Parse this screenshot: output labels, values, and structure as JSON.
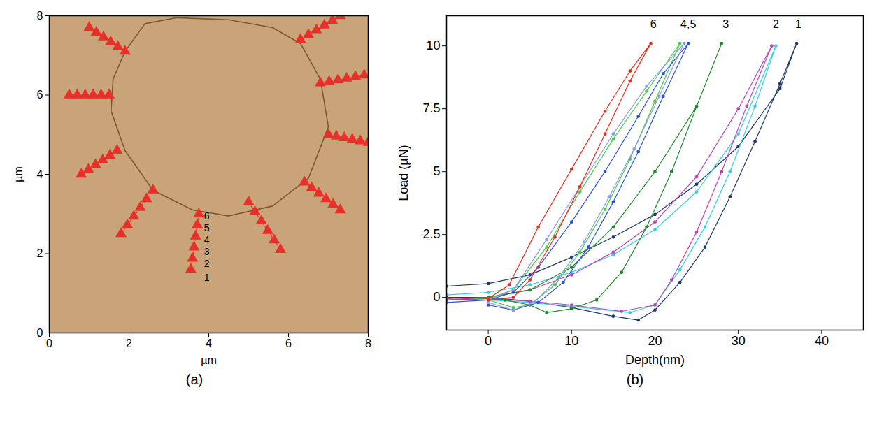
{
  "chart_data": [
    {
      "type": "scatter",
      "title": "(a)",
      "xlabel": "µm",
      "ylabel": "µm",
      "xlim": [
        0,
        8
      ],
      "ylim": [
        0,
        8
      ],
      "xticks": [
        0,
        2,
        4,
        6,
        8
      ],
      "yticks": [
        0,
        2,
        4,
        6,
        8
      ],
      "grid": false,
      "series": [
        {
          "type": "line",
          "color": "#7a5a30",
          "line_style": "solid",
          "x": [
            1.9,
            2.4,
            3.2,
            4.5,
            5.6,
            6.3,
            6.8,
            7.0,
            6.5,
            5.6,
            4.5,
            3.6,
            2.6,
            1.9,
            1.55,
            1.6,
            1.9
          ],
          "values": [
            7.1,
            7.8,
            7.95,
            7.9,
            7.7,
            7.3,
            6.4,
            5.2,
            3.9,
            3.2,
            2.95,
            3.1,
            3.6,
            4.6,
            5.6,
            6.4,
            7.1
          ]
        },
        {
          "color": "#e8302a",
          "marker": "triangle",
          "line_style": "dashed",
          "x": [
            1.0,
            1.18,
            1.36,
            1.54,
            1.72,
            1.9
          ],
          "values": [
            7.7,
            7.58,
            7.46,
            7.34,
            7.22,
            7.1
          ]
        },
        {
          "color": "#e8302a",
          "marker": "triangle",
          "line_style": "dashed",
          "x": [
            0.5,
            0.7,
            0.9,
            1.1,
            1.3,
            1.5
          ],
          "values": [
            6.0,
            6.0,
            6.0,
            6.0,
            6.0,
            6.0
          ]
        },
        {
          "color": "#e8302a",
          "marker": "triangle",
          "line_style": "dashed",
          "x": [
            0.8,
            0.98,
            1.16,
            1.34,
            1.52,
            1.7
          ],
          "values": [
            4.0,
            4.12,
            4.24,
            4.36,
            4.48,
            4.6
          ]
        },
        {
          "color": "#e8302a",
          "marker": "triangle",
          "line_style": "dashed",
          "x": [
            1.8,
            1.96,
            2.12,
            2.28,
            2.44,
            2.6
          ],
          "values": [
            2.5,
            2.72,
            2.94,
            3.16,
            3.38,
            3.6
          ]
        },
        {
          "color": "#e8302a",
          "marker": "triangle",
          "line_style": "dashed",
          "x": [
            3.55,
            3.59,
            3.63,
            3.67,
            3.71,
            3.75
          ],
          "values": [
            1.6,
            1.88,
            2.16,
            2.44,
            2.72,
            3.0
          ]
        },
        {
          "color": "#e8302a",
          "marker": "triangle",
          "line_style": "dashed",
          "x": [
            5.0,
            5.16,
            5.32,
            5.48,
            5.64,
            5.8
          ],
          "values": [
            3.3,
            3.06,
            2.82,
            2.58,
            2.34,
            2.1
          ]
        },
        {
          "color": "#e8302a",
          "marker": "triangle",
          "line_style": "dashed",
          "x": [
            6.4,
            6.58,
            6.76,
            6.94,
            7.12,
            7.3
          ],
          "values": [
            3.8,
            3.66,
            3.52,
            3.38,
            3.24,
            3.1
          ]
        },
        {
          "color": "#e8302a",
          "marker": "triangle",
          "line_style": "dashed",
          "x": [
            7.0,
            7.2,
            7.4,
            7.6,
            7.8,
            8.0
          ],
          "values": [
            5.0,
            4.96,
            4.92,
            4.88,
            4.84,
            4.8
          ]
        },
        {
          "color": "#e8302a",
          "marker": "triangle",
          "line_style": "dashed",
          "x": [
            6.8,
            7.02,
            7.24,
            7.46,
            7.68,
            7.9
          ],
          "values": [
            6.3,
            6.34,
            6.38,
            6.42,
            6.46,
            6.5
          ]
        },
        {
          "color": "#e8302a",
          "marker": "triangle",
          "line_style": "dashed",
          "x": [
            6.3,
            6.5,
            6.7,
            6.9,
            7.1,
            7.3
          ],
          "values": [
            7.4,
            7.52,
            7.64,
            7.76,
            7.88,
            8.0
          ]
        }
      ],
      "annotations": [
        {
          "text": "1",
          "x": 3.95,
          "y": 1.4
        },
        {
          "text": "2",
          "x": 3.95,
          "y": 1.75
        },
        {
          "text": "3",
          "x": 3.95,
          "y": 2.05
        },
        {
          "text": "4",
          "x": 3.95,
          "y": 2.35
        },
        {
          "text": "5",
          "x": 3.95,
          "y": 2.65
        },
        {
          "text": "6",
          "x": 3.95,
          "y": 2.95
        }
      ]
    },
    {
      "type": "line",
      "title": "(b)",
      "xlabel": "Depth(nm)",
      "ylabel": "Load (µN)",
      "xlim": [
        -5,
        45
      ],
      "ylim": [
        -1.3,
        11.2
      ],
      "xticks": [
        0,
        10,
        20,
        30,
        40
      ],
      "yticks": [
        0,
        2.5,
        5,
        7.5,
        10
      ],
      "grid": false,
      "series": [
        {
          "color": "#1f3a6e",
          "marker": "circle",
          "line_style": "solid",
          "x": [
            -5,
            0,
            5,
            10,
            15,
            20,
            25,
            30,
            35,
            37,
            35,
            32,
            29,
            26,
            23,
            20,
            18,
            15,
            10,
            5,
            0,
            -5
          ],
          "values": [
            0.45,
            0.55,
            0.9,
            1.6,
            2.4,
            3.3,
            4.5,
            6.0,
            8.3,
            10.1,
            8.5,
            6.2,
            4.0,
            2.0,
            0.6,
            -0.5,
            -0.9,
            -0.75,
            -0.4,
            -0.15,
            0,
            0
          ]
        },
        {
          "color": "#33d0e0",
          "marker": "circle",
          "line_style": "solid",
          "x": [
            -5,
            0,
            5,
            10,
            15,
            20,
            25,
            30,
            34.5,
            32,
            29,
            26,
            23,
            20,
            17,
            10,
            5,
            0
          ],
          "values": [
            0.1,
            0.2,
            0.5,
            1.0,
            1.7,
            2.7,
            4.2,
            6.5,
            10.0,
            7.6,
            5.0,
            2.8,
            1.1,
            -0.3,
            -0.6,
            -0.35,
            -0.2,
            -0.1
          ]
        },
        {
          "color": "#c040c0",
          "marker": "circle",
          "line_style": "solid",
          "x": [
            -5,
            0,
            5,
            10,
            15,
            20,
            25,
            30,
            34,
            31,
            28,
            25,
            22,
            20,
            16,
            10,
            5,
            0
          ],
          "values": [
            -0.05,
            0,
            0.3,
            0.9,
            1.8,
            3.0,
            4.8,
            7.5,
            10.0,
            7.6,
            5.0,
            2.6,
            0.7,
            -0.3,
            -0.55,
            -0.3,
            -0.15,
            -0.05
          ]
        },
        {
          "color": "#1a8a2a",
          "marker": "circle",
          "line_style": "solid",
          "x": [
            -5,
            0,
            5,
            10,
            15,
            20,
            25,
            28,
            25,
            22,
            19,
            16,
            13,
            10,
            7,
            5,
            2,
            0
          ],
          "values": [
            -0.1,
            0,
            0.3,
            1.2,
            2.8,
            5.0,
            7.6,
            10.1,
            7.6,
            5.0,
            2.8,
            1.0,
            -0.1,
            -0.45,
            -0.6,
            -0.3,
            -0.1,
            0
          ]
        },
        {
          "color": "#44d044",
          "marker": "circle",
          "line_style": "solid",
          "x": [
            -5,
            0,
            3,
            7,
            11,
            15,
            19,
            23,
            20,
            17,
            14,
            11,
            8,
            5,
            3,
            0
          ],
          "values": [
            -0.1,
            -0.05,
            0.3,
            2.0,
            4.2,
            6.3,
            8.2,
            10.1,
            7.8,
            5.5,
            3.5,
            1.8,
            0.5,
            -0.3,
            -0.4,
            -0.1
          ]
        },
        {
          "color": "#2a50e0",
          "marker": "circle",
          "line_style": "solid",
          "x": [
            -5,
            0,
            3,
            6,
            10,
            14,
            18,
            21,
            24,
            21,
            18,
            15,
            12,
            9,
            6,
            3,
            0
          ],
          "values": [
            -0.2,
            -0.1,
            0.2,
            1.2,
            3.0,
            5.0,
            7.2,
            8.9,
            10.1,
            8.0,
            5.8,
            3.8,
            2.0,
            0.6,
            -0.2,
            -0.5,
            -0.3
          ]
        },
        {
          "color": "#8c9ae8",
          "marker": "circle",
          "line_style": "solid",
          "x": [
            -5,
            0,
            3,
            7,
            11,
            15,
            19,
            23.5,
            20.5,
            17.5,
            14.5,
            11.5,
            8.5,
            5.5,
            3,
            0
          ],
          "values": [
            -0.1,
            -0.1,
            0.3,
            2.3,
            4.4,
            6.5,
            8.4,
            10.1,
            8.0,
            5.9,
            4.0,
            2.2,
            0.8,
            -0.2,
            -0.5,
            -0.2
          ]
        },
        {
          "color": "#ee2a1a",
          "marker": "circle",
          "line_style": "solid",
          "x": [
            -5,
            0,
            2.5,
            6,
            10,
            14,
            17,
            19.5,
            17,
            14,
            11,
            8,
            5,
            3,
            0
          ],
          "values": [
            -0.1,
            -0.05,
            0.5,
            2.8,
            5.1,
            7.4,
            9.0,
            10.1,
            8.6,
            6.5,
            4.4,
            2.4,
            0.7,
            0.0,
            -0.1
          ]
        }
      ],
      "annotations": [
        {
          "text": "6",
          "x": 19.8,
          "y": 10.85
        },
        {
          "text": "4,5",
          "x": 24,
          "y": 10.85
        },
        {
          "text": "3",
          "x": 28.5,
          "y": 10.85
        },
        {
          "text": "2",
          "x": 34.5,
          "y": 10.85
        },
        {
          "text": "1",
          "x": 37.2,
          "y": 10.85
        }
      ]
    }
  ]
}
